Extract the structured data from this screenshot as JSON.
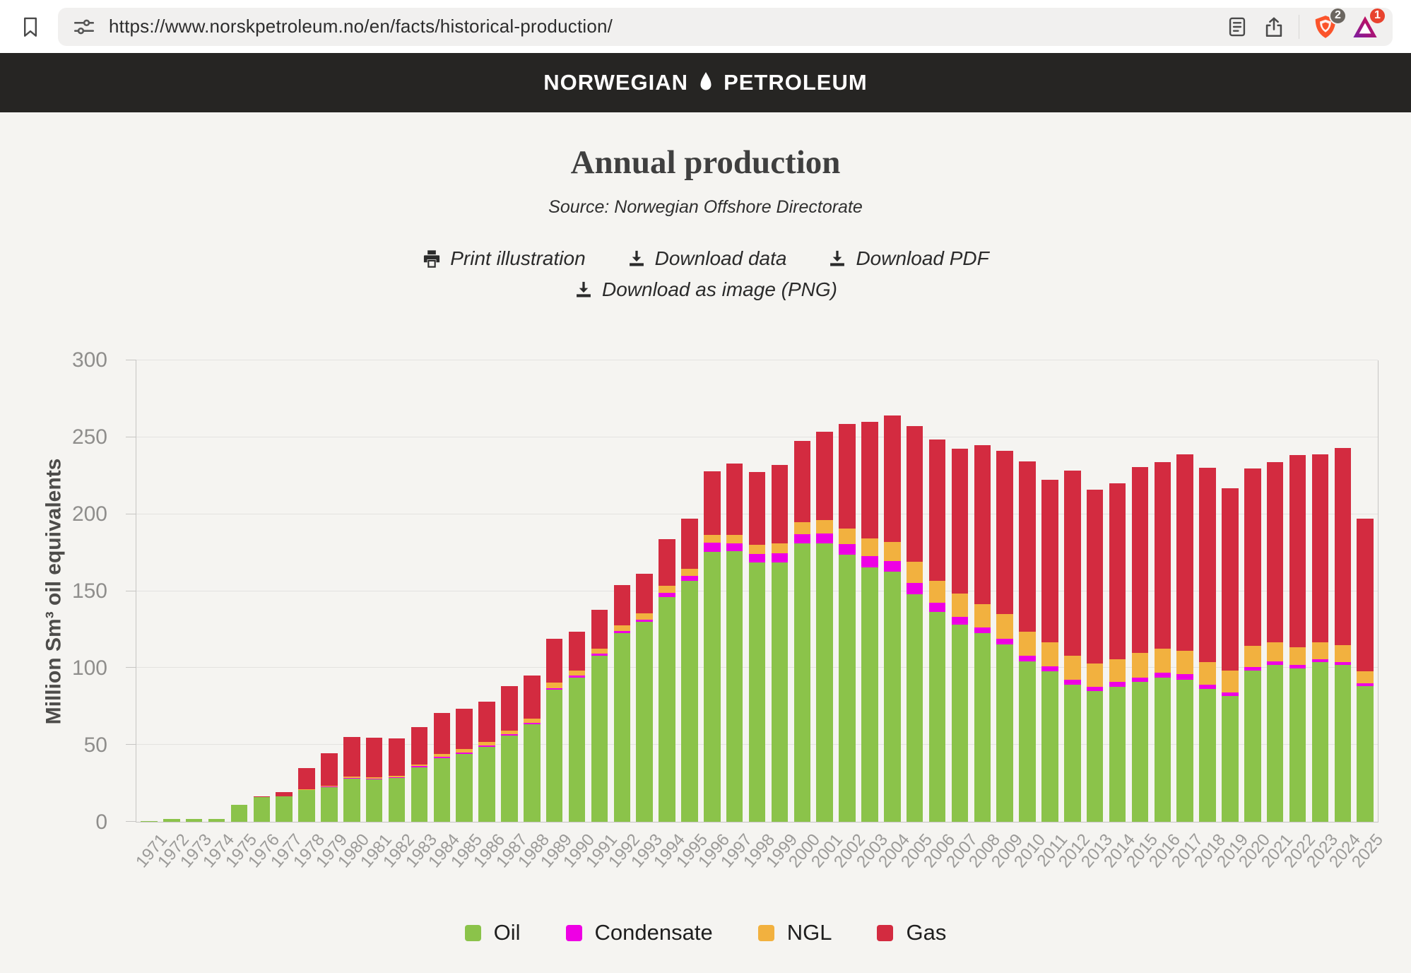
{
  "browser": {
    "url": "https://www.norskpetroleum.no/en/facts/historical-production/",
    "shield_badge": "2",
    "assistant_badge": "1"
  },
  "site_header": {
    "brand_left": "NORWEGIAN",
    "brand_right": "PETROLEUM"
  },
  "page": {
    "title": "Annual production",
    "source": "Source: Norwegian Offshore Directorate",
    "actions": [
      {
        "label": "Print illustration",
        "icon": "print-icon"
      },
      {
        "label": "Download data",
        "icon": "download-icon"
      },
      {
        "label": "Download PDF",
        "icon": "download-icon"
      },
      {
        "label": "Download as image (PNG)",
        "icon": "download-icon"
      }
    ]
  },
  "chart_data": {
    "type": "bar",
    "stacked": true,
    "title": "Annual production",
    "xlabel": "",
    "ylabel": "Million Sm³ oil equivalents",
    "ylim": [
      0,
      300
    ],
    "yticks": [
      0,
      50,
      100,
      150,
      200,
      250,
      300
    ],
    "grid": true,
    "legend_position": "bottom",
    "categories": [
      "1971",
      "1972",
      "1973",
      "1974",
      "1975",
      "1976",
      "1977",
      "1978",
      "1979",
      "1980",
      "1981",
      "1982",
      "1983",
      "1984",
      "1985",
      "1986",
      "1987",
      "1988",
      "1989",
      "1990",
      "1991",
      "1992",
      "1993",
      "1994",
      "1995",
      "1996",
      "1997",
      "1998",
      "1999",
      "2000",
      "2001",
      "2002",
      "2003",
      "2004",
      "2005",
      "2006",
      "2007",
      "2008",
      "2009",
      "2010",
      "2011",
      "2012",
      "2013",
      "2014",
      "2015",
      "2016",
      "2017",
      "2018",
      "2019",
      "2020",
      "2021",
      "2022",
      "2023",
      "2024",
      "2025"
    ],
    "series": [
      {
        "name": "Oil",
        "color": "#8bc34a",
        "values": [
          0.4,
          1.9,
          1.9,
          2.0,
          11.0,
          16.2,
          16.4,
          20.6,
          22.5,
          28.2,
          27.5,
          28.5,
          35.6,
          41.4,
          44.3,
          48.6,
          56.1,
          63.3,
          86.0,
          93.9,
          108.2,
          122.7,
          129.9,
          146.3,
          156.8,
          175.4,
          175.9,
          168.7,
          168.4,
          181.2,
          180.9,
          173.6,
          165.5,
          162.8,
          148.1,
          136.6,
          128.3,
          122.7,
          115.5,
          104.4,
          97.9,
          89.2,
          84.9,
          87.8,
          90.8,
          93.8,
          92.4,
          86.2,
          81.8,
          98.2,
          101.9,
          99.9,
          103.8,
          102.0,
          88.0
        ]
      },
      {
        "name": "Condensate",
        "color": "#ee00e4",
        "values": [
          0,
          0,
          0,
          0,
          0,
          0,
          0,
          0,
          0.3,
          0.5,
          0.5,
          0.5,
          0.6,
          0.8,
          0.9,
          1.0,
          1.0,
          1.0,
          1.0,
          1.0,
          1.0,
          1.2,
          1.4,
          2.6,
          3.1,
          5.9,
          5.0,
          5.2,
          6.1,
          5.9,
          6.6,
          6.9,
          7.4,
          6.6,
          7.4,
          6.0,
          5.0,
          3.6,
          3.4,
          3.5,
          3.2,
          3.2,
          2.9,
          3.0,
          3.0,
          3.2,
          3.5,
          3.1,
          2.4,
          2.2,
          2.2,
          2.1,
          2.0,
          2.0,
          2.0
        ]
      },
      {
        "name": "NGL",
        "color": "#f2b13f",
        "values": [
          0,
          0,
          0,
          0,
          0,
          0,
          0.2,
          0.4,
          0.6,
          0.8,
          0.9,
          1.0,
          1.2,
          1.8,
          2.2,
          2.3,
          2.3,
          2.7,
          3.3,
          3.4,
          3.5,
          3.8,
          4.3,
          4.5,
          4.7,
          5.4,
          5.6,
          6.0,
          6.5,
          7.7,
          8.8,
          10.4,
          11.5,
          12.7,
          13.6,
          14.0,
          14.9,
          15.3,
          16.1,
          15.9,
          15.5,
          15.5,
          15.0,
          15.1,
          15.9,
          15.7,
          15.4,
          14.6,
          13.9,
          13.8,
          12.8,
          11.5,
          11.1,
          11.0,
          8.0
        ]
      },
      {
        "name": "Gas",
        "color": "#d32b40",
        "values": [
          0,
          0,
          0,
          0,
          0,
          0.2,
          2.9,
          14.1,
          21.2,
          25.6,
          25.6,
          24.2,
          24.2,
          26.7,
          26.2,
          26.0,
          28.7,
          28.2,
          28.9,
          25.5,
          25.2,
          26.2,
          25.7,
          30.5,
          32.3,
          41.3,
          46.3,
          47.7,
          50.8,
          52.7,
          57.2,
          67.9,
          75.8,
          82.3,
          88.2,
          92.1,
          94.4,
          103.5,
          106.1,
          110.3,
          105.6,
          120.3,
          113.2,
          114.3,
          120.8,
          121.1,
          127.7,
          126.4,
          118.7,
          115.7,
          116.8,
          124.8,
          121.9,
          128.0,
          99.0
        ]
      }
    ]
  }
}
